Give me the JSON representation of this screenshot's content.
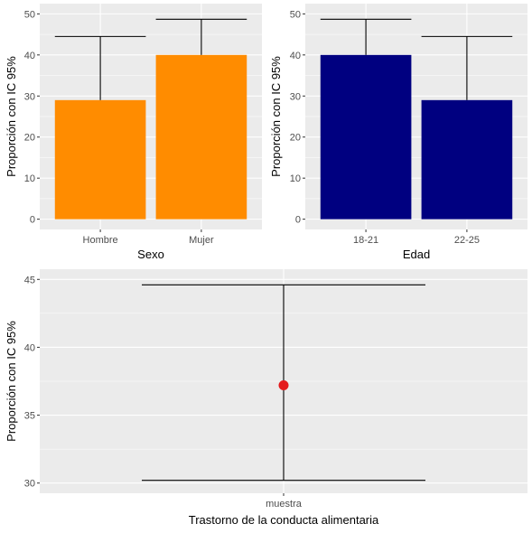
{
  "colors": {
    "panel_background": "#EBEBEB",
    "grid_major": "#FFFFFF",
    "sexo_fill": "#FF8C00",
    "edad_fill": "#000080",
    "point": "#E41A1C",
    "errorbar": "#000000"
  },
  "chart_data": [
    {
      "id": "sexo",
      "type": "bar",
      "categories": [
        "Hombre",
        "Mujer"
      ],
      "values": [
        29,
        40
      ],
      "ci_lower": [
        null,
        null
      ],
      "ci_upper": [
        44.5,
        48.7
      ],
      "xlabel": "Sexo",
      "ylabel": "Proporción con IC 95%",
      "ylim": [
        0,
        50
      ],
      "yticks": [
        "0",
        "10",
        "20",
        "30",
        "40",
        "50"
      ],
      "grid": true,
      "legend": "none"
    },
    {
      "id": "edad",
      "type": "bar",
      "categories": [
        "18-21",
        "22-25"
      ],
      "values": [
        40,
        29
      ],
      "ci_lower": [
        null,
        null
      ],
      "ci_upper": [
        48.7,
        44.5
      ],
      "xlabel": "Edad",
      "ylabel": "Proporción con IC 95%",
      "ylim": [
        0,
        50
      ],
      "yticks": [
        "0",
        "10",
        "20",
        "30",
        "40",
        "50"
      ],
      "grid": true,
      "legend": "none"
    },
    {
      "id": "muestra",
      "type": "scatter",
      "categories": [
        "muestra"
      ],
      "values": [
        37.2
      ],
      "ci_lower": [
        30.2
      ],
      "ci_upper": [
        44.6
      ],
      "xlabel": "Trastorno de la conducta alimentaria",
      "ylabel": "Proporción con IC 95%",
      "ylim": [
        30,
        45
      ],
      "yticks": [
        "30",
        "35",
        "40",
        "45"
      ],
      "grid": true,
      "legend": "none"
    }
  ]
}
